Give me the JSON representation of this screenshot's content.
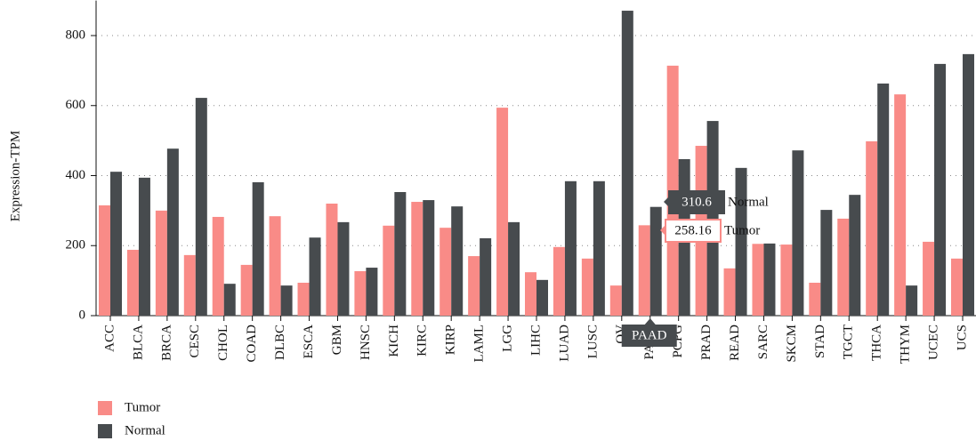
{
  "chart_data": {
    "type": "bar",
    "ylabel": "Expression-TPM",
    "categories": [
      "ACC",
      "BLCA",
      "BRCA",
      "CESC",
      "CHOL",
      "COAD",
      "DLBC",
      "ESCA",
      "GBM",
      "HNSC",
      "KICH",
      "KIRC",
      "KIRP",
      "LAML",
      "LGG",
      "LIHC",
      "LUAD",
      "LUSC",
      "OV",
      "PAAD",
      "PCPG",
      "PRAD",
      "READ",
      "SARC",
      "SKCM",
      "STAD",
      "TGCT",
      "THCA",
      "THYM",
      "UCEC",
      "UCS"
    ],
    "series": [
      {
        "name": "Tumor",
        "color": "#f98b87",
        "values": [
          315,
          188,
          300,
          173,
          282,
          145,
          284,
          94,
          320,
          127,
          257,
          325,
          251,
          170,
          594,
          124,
          196,
          163,
          86,
          258.16,
          714,
          485,
          135,
          205,
          203,
          94,
          277,
          498,
          632,
          211,
          163
        ]
      },
      {
        "name": "Normal",
        "color": "#474b4e",
        "values": [
          411,
          394,
          477,
          622,
          91,
          381,
          86,
          223,
          267,
          137,
          353,
          330,
          312,
          221,
          267,
          102,
          384,
          384,
          871,
          310.6,
          447,
          556,
          422,
          206,
          472,
          302,
          345,
          663,
          86,
          719,
          747
        ]
      }
    ],
    "ylim": [
      0,
      900
    ],
    "yticks": [
      0,
      200,
      400,
      600,
      800
    ],
    "grid": true,
    "legend": "bottom-left",
    "active_index": 19
  }
}
